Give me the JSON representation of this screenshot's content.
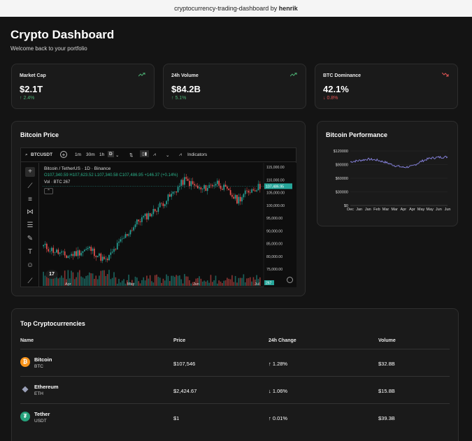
{
  "topbar": {
    "repo": "cryptocurrency-trading-dashboard",
    "by": "by",
    "author": "henrik"
  },
  "header": {
    "title": "Crypto Dashboard",
    "subtitle": "Welcome back to your portfolio"
  },
  "stats": [
    {
      "label": "Market Cap",
      "value": "$2.1T",
      "change": "↑ 2.4%",
      "direction": "up"
    },
    {
      "label": "24h Volume",
      "value": "$84.2B",
      "change": "↑ 5.1%",
      "direction": "up"
    },
    {
      "label": "BTC Dominance",
      "value": "42.1%",
      "change": "↓ 0.8%",
      "direction": "down"
    }
  ],
  "price_card": {
    "title": "Bitcoin Price",
    "toolbar": {
      "symbol": "BTCUSDT",
      "intervals": [
        "1m",
        "30m",
        "1h",
        "D"
      ],
      "indicators": "Indicators"
    },
    "legend": {
      "pair": "Bitcoin / TetherUS · 1D · Binance",
      "ohlc": "O107,340.59 H107,623.52 L107,340.58 C107,486.95 +146.37 (+0.14%)",
      "volume": "Vol · BTC  267"
    },
    "price_axis": [
      "115,000.00",
      "110,000.00",
      "105,000.00",
      "100,000.00",
      "95,000.00",
      "90,000.00",
      "85,000.00",
      "80,000.00",
      "75,000.00"
    ],
    "last_price": "107,486.95",
    "last_volume": "267",
    "time_axis": [
      "Apr",
      "May",
      "Jun",
      "Jul"
    ]
  },
  "performance": {
    "title": "Bitcoin Performance",
    "y_ticks": [
      "$120000",
      "$90000",
      "$60000",
      "$30000",
      "$0"
    ],
    "x_ticks": [
      "Dec",
      "Jan",
      "Jan",
      "Feb",
      "Mar",
      "Mar",
      "Apr",
      "Apr",
      "May",
      "May",
      "Jun",
      "Jun"
    ]
  },
  "chart_data": {
    "type": "line",
    "title": "Bitcoin Performance",
    "x": [
      "Dec",
      "Jan",
      "Jan",
      "Feb",
      "Mar",
      "Mar",
      "Apr",
      "Apr",
      "May",
      "May",
      "Jun",
      "Jun"
    ],
    "series": [
      {
        "values": [
          96000,
          99000,
          102000,
          100000,
          95000,
          88000,
          84000,
          86000,
          97000,
          104000,
          106000,
          107000
        ]
      }
    ],
    "ylim": [
      0,
      120000
    ],
    "color": "#8b87e6"
  },
  "table": {
    "title": "Top Cryptocurrencies",
    "headers": [
      "Name",
      "Price",
      "24h Change",
      "Volume"
    ],
    "rows": [
      {
        "name": "Bitcoin",
        "symbol": "BTC",
        "price": "$107,546",
        "change": "↑ 1.28%",
        "direction": "up",
        "volume": "$32.8B",
        "icon": "bitcoin-icon",
        "color": "#f7931a"
      },
      {
        "name": "Ethereum",
        "symbol": "ETH",
        "price": "$2,424.67",
        "change": "↓ 1.06%",
        "direction": "down",
        "volume": "$15.8B",
        "icon": "ethereum-icon",
        "color": "#627eea"
      },
      {
        "name": "Tether",
        "symbol": "USDT",
        "price": "$1",
        "change": "↑ 0.01%",
        "direction": "up",
        "volume": "$39.3B",
        "icon": "tether-icon",
        "color": "#26a17b"
      }
    ]
  }
}
